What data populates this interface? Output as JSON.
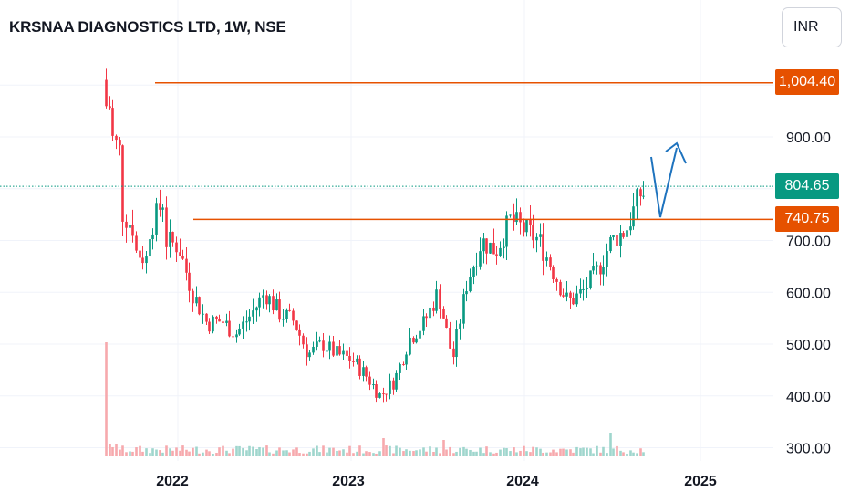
{
  "header": {
    "title": "KRSNAA DIAGNOSTICS LTD, 1W, NSE",
    "currency": "INR"
  },
  "price_tags": {
    "resistance": {
      "label": "1,004.40",
      "value": 1004.4,
      "color": "#e65100"
    },
    "current": {
      "label": "804.65",
      "value": 804.65,
      "color": "#089981"
    },
    "support": {
      "label": "740.75",
      "value": 740.75,
      "color": "#e65100"
    }
  },
  "colors": {
    "up": "#089981",
    "down": "#f23645",
    "up_volume": "#9fd6cd",
    "down_volume": "#f7a9ad",
    "level_line": "#e65100",
    "arrow": "#1e73be",
    "current_line": "#089981"
  },
  "chart_data": {
    "type": "candlestick",
    "title": "KRSNAA DIAGNOSTICS LTD, 1W, NSE",
    "timeframe": "1W",
    "currency": "INR",
    "y_ticks": [
      "900.00",
      "700.00",
      "600.00",
      "500.00",
      "400.00",
      "300.00"
    ],
    "x_ticks": [
      "2022",
      "2023",
      "2024",
      "2025"
    ],
    "ylim": [
      280,
      1040
    ],
    "price_series": [
      [
        "2021-08",
        1030
      ],
      [
        "2021-08",
        920
      ],
      [
        "2021-09",
        870
      ],
      [
        "2021-09",
        760
      ],
      [
        "2021-10",
        720
      ],
      [
        "2021-10",
        680
      ],
      [
        "2021-11",
        660
      ],
      [
        "2021-11",
        720
      ],
      [
        "2021-12",
        780
      ],
      [
        "2021-12",
        700
      ],
      [
        "2022-01",
        690
      ],
      [
        "2022-02",
        600
      ],
      [
        "2022-03",
        540
      ],
      [
        "2022-04",
        545
      ],
      [
        "2022-05",
        520
      ],
      [
        "2022-06",
        555
      ],
      [
        "2022-07",
        600
      ],
      [
        "2022-08",
        560
      ],
      [
        "2022-09",
        545
      ],
      [
        "2022-10",
        480
      ],
      [
        "2022-11",
        500
      ],
      [
        "2022-12",
        480
      ],
      [
        "2023-01",
        470
      ],
      [
        "2023-02",
        440
      ],
      [
        "2023-03",
        400
      ],
      [
        "2023-04",
        430
      ],
      [
        "2023-05",
        510
      ],
      [
        "2023-06",
        540
      ],
      [
        "2023-07",
        600
      ],
      [
        "2023-08",
        470
      ],
      [
        "2023-09",
        620
      ],
      [
        "2023-10",
        700
      ],
      [
        "2023-11",
        680
      ],
      [
        "2023-12",
        740
      ],
      [
        "2024-01",
        720
      ],
      [
        "2024-02",
        700
      ],
      [
        "2024-03",
        640
      ],
      [
        "2024-04",
        580
      ],
      [
        "2024-05",
        600
      ],
      [
        "2024-06",
        640
      ],
      [
        "2024-07",
        700
      ],
      [
        "2024-08",
        720
      ],
      [
        "2024-09",
        790
      ]
    ],
    "levels": [
      {
        "price": 1004.4,
        "label": "1,004.40"
      },
      {
        "price": 740.75,
        "label": "740.75"
      }
    ],
    "last_price": 804.65,
    "projection": {
      "from": 804.65,
      "pullback_to": 740.75,
      "target_direction": "up",
      "target_approx": 880
    }
  }
}
